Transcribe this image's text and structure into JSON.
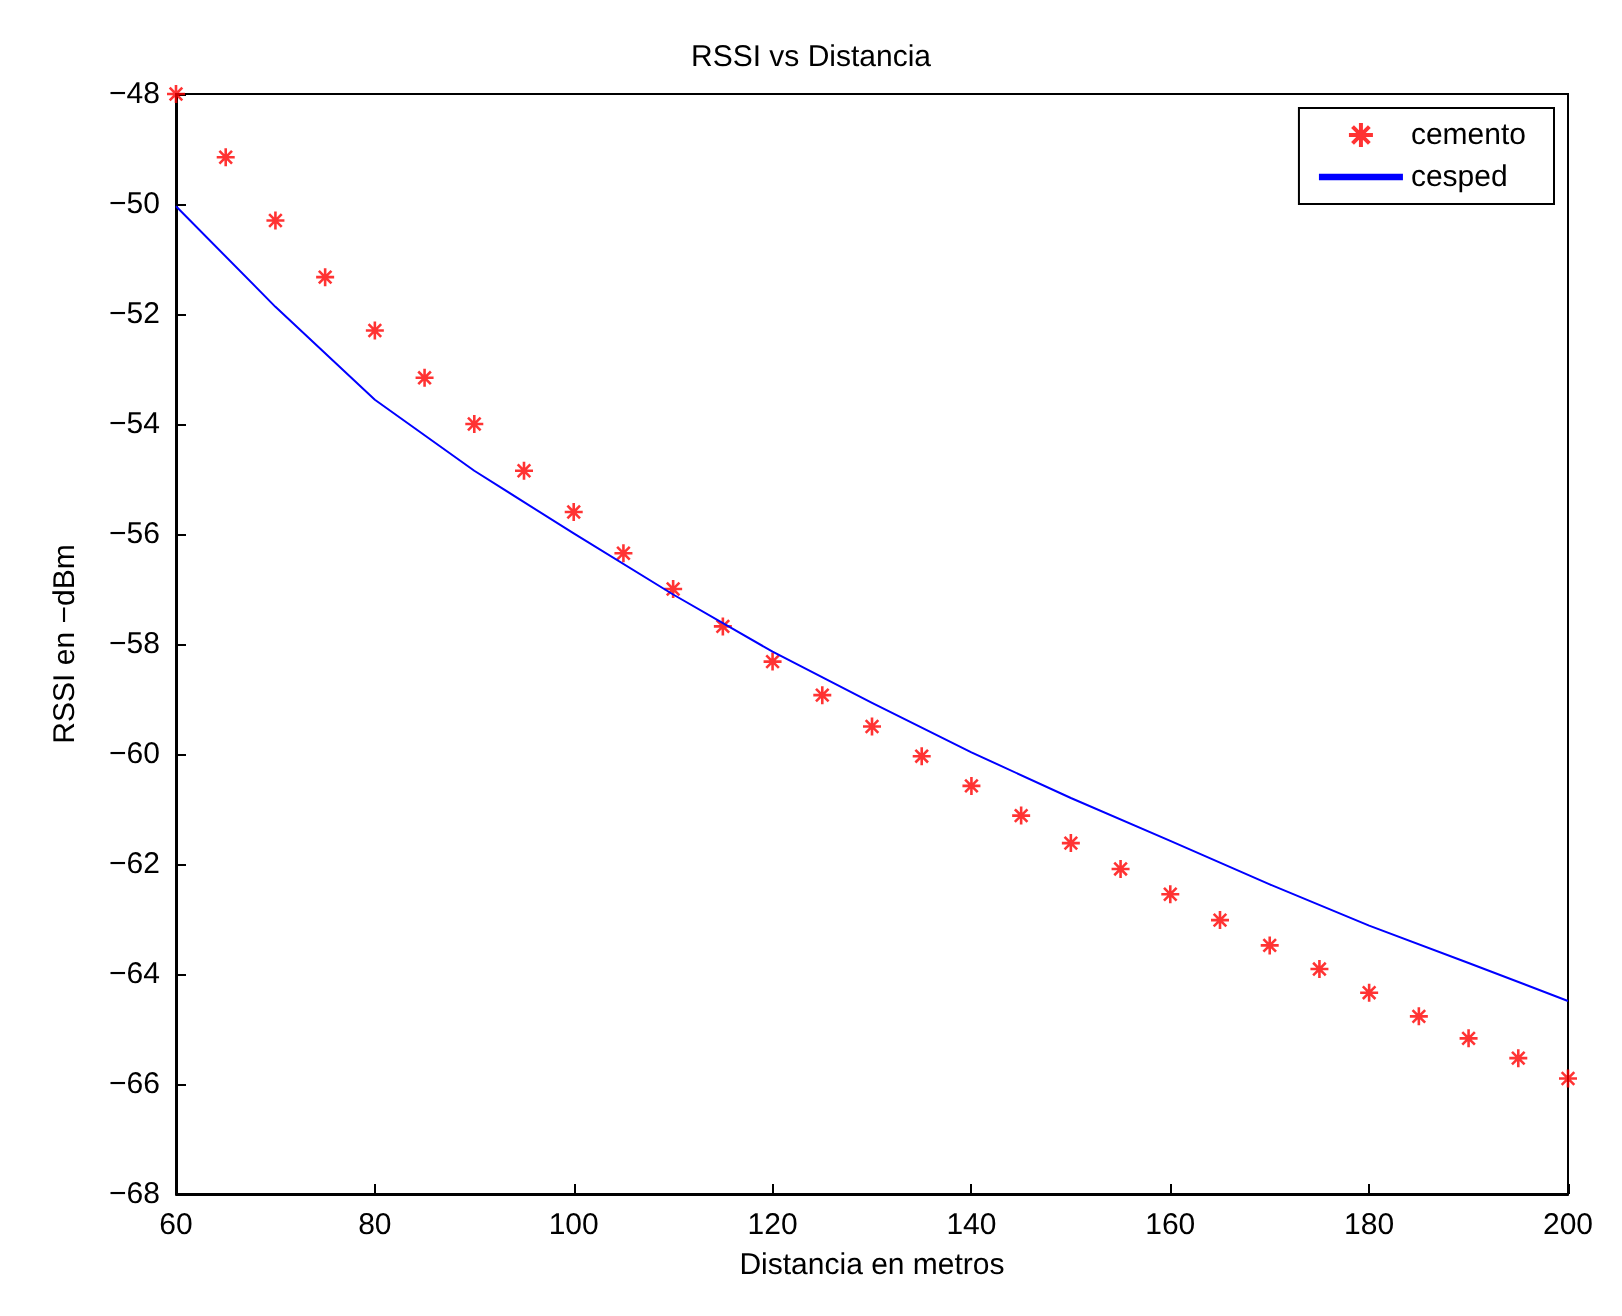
{
  "chart_data": {
    "type": "scatter",
    "title": "RSSI vs Distancia",
    "xlabel": "Distancia en metros",
    "ylabel": "RSSI en −dBm",
    "xlim": [
      60,
      200
    ],
    "xticks": [
      60,
      80,
      100,
      120,
      140,
      160,
      180,
      200
    ],
    "ylim": [
      -68,
      -48
    ],
    "yticks": [
      -68,
      -66,
      -64,
      -62,
      -60,
      -58,
      -56,
      -54,
      -52,
      -50,
      -48
    ],
    "grid": false,
    "legend": "top right",
    "series": [
      {
        "name": "cemento",
        "type": "scatter",
        "marker": "cross",
        "color": "#ff0000",
        "x": [
          60,
          65,
          70,
          75,
          80,
          85,
          90,
          95,
          100,
          105,
          110,
          115,
          120,
          125,
          130,
          135,
          140,
          145,
          150,
          155,
          160,
          165,
          170,
          175,
          180,
          185,
          190,
          195,
          200
        ],
        "values": [
          -48.0,
          -49.15,
          -50.3,
          -51.33,
          -52.3,
          -53.16,
          -54.0,
          -54.85,
          -55.6,
          -56.35,
          -57.0,
          -57.68,
          -58.32,
          -58.93,
          -59.5,
          -60.04,
          -60.58,
          -61.12,
          -61.62,
          -62.09,
          -62.55,
          -63.02,
          -63.48,
          -63.91,
          -64.34,
          -64.77,
          -65.17,
          -65.53,
          -65.9
        ]
      },
      {
        "name": "cesped",
        "type": "line",
        "marker": "none",
        "color": "#0000ff",
        "x": [
          60,
          70,
          80,
          90,
          100,
          110,
          120,
          130,
          140,
          150,
          160,
          170,
          180,
          190,
          200
        ],
        "values": [
          -50.04,
          -51.87,
          -53.56,
          -54.85,
          -55.99,
          -57.1,
          -58.14,
          -59.07,
          -59.97,
          -60.8,
          -61.58,
          -62.37,
          -63.12,
          -63.8,
          -64.49
        ]
      }
    ]
  }
}
